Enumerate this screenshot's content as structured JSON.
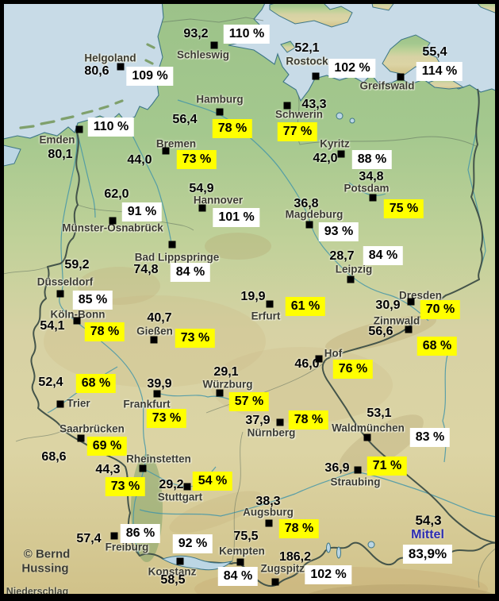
{
  "map": {
    "title": "Niederschlag",
    "credit_line1": "© Bernd",
    "credit_line2": "Hussing",
    "colors": {
      "badge_yellow": "#ffff00",
      "badge_white": "#ffffff",
      "sea": "#c8dbe7",
      "mittel_blue": "#2c2cb0",
      "marker_black": "#000000"
    }
  },
  "mittel": {
    "value": "54,3",
    "label": "Mittel",
    "percent": "83,9%"
  },
  "stations": [
    {
      "name": "Schleswig",
      "value": "93,2",
      "percent": "110 %",
      "box": "white",
      "pos": {
        "name": [
          256,
          69
        ],
        "value": [
          247,
          43
        ],
        "marker": [
          270,
          57
        ],
        "percent": [
          311,
          43
        ]
      }
    },
    {
      "name": "Helgoland",
      "value": "80,6",
      "percent": "109 %",
      "box": "white",
      "pos": {
        "name": [
          139,
          73
        ],
        "value": [
          122,
          90
        ],
        "marker": [
          152,
          84
        ],
        "percent": [
          189,
          96
        ]
      }
    },
    {
      "name": "Rostock",
      "value": "52,1",
      "percent": "102 %",
      "box": "white",
      "pos": {
        "name": [
          387,
          77
        ],
        "value": [
          387,
          61
        ],
        "marker": [
          398,
          96
        ],
        "percent": [
          444,
          86
        ]
      }
    },
    {
      "name": "Greifswald",
      "value": "55,4",
      "percent": "114 %",
      "box": "white",
      "pos": {
        "name": [
          488,
          108
        ],
        "value": [
          548,
          66
        ],
        "marker": [
          505,
          97
        ],
        "percent": [
          554,
          90
        ]
      }
    },
    {
      "name": "Emden",
      "value": "80,1",
      "percent": "110 %",
      "box": "white",
      "pos": {
        "name": [
          72,
          176
        ],
        "value": [
          76,
          195
        ],
        "marker": [
          100,
          163
        ],
        "percent": [
          140,
          160
        ]
      }
    },
    {
      "name": "Hamburg",
      "value": "56,4",
      "percent": "78 %",
      "box": "yellow",
      "pos": {
        "name": [
          277,
          125
        ],
        "value": [
          233,
          151
        ],
        "marker": [
          277,
          141
        ],
        "percent": [
          293,
          162
        ]
      }
    },
    {
      "name": "Schwerin",
      "value": "43,3",
      "percent": "77 %",
      "box": "yellow",
      "pos": {
        "name": [
          377,
          144
        ],
        "value": [
          396,
          132
        ],
        "marker": [
          362,
          133
        ],
        "percent": [
          375,
          166
        ]
      }
    },
    {
      "name": "Bremen",
      "value": "44,0",
      "percent": "73 %",
      "box": "yellow",
      "pos": {
        "name": [
          222,
          181
        ],
        "value": [
          176,
          202
        ],
        "marker": [
          209,
          190
        ],
        "percent": [
          248,
          201
        ]
      }
    },
    {
      "name": "Kyritz",
      "value": "42,0",
      "percent": "88 %",
      "box": "white",
      "pos": {
        "name": [
          422,
          181
        ],
        "value": [
          410,
          200
        ],
        "marker": [
          430,
          194
        ],
        "percent": [
          469,
          201
        ]
      }
    },
    {
      "name": "Hannover",
      "value": "54,9",
      "percent": "101 %",
      "box": "white",
      "pos": {
        "name": [
          275,
          252
        ],
        "value": [
          254,
          238
        ],
        "marker": [
          255,
          262
        ],
        "percent": [
          298,
          274
        ]
      }
    },
    {
      "name": "Münster-Osnabrück",
      "value": "62,0",
      "percent": "91 %",
      "box": "white",
      "pos": {
        "name": [
          142,
          287
        ],
        "value": [
          147,
          245
        ],
        "marker": [
          142,
          278
        ],
        "percent": [
          179,
          267
        ]
      }
    },
    {
      "name": "Magdeburg",
      "value": "36,8",
      "percent": "93 %",
      "box": "white",
      "pos": {
        "name": [
          396,
          270
        ],
        "value": [
          386,
          257
        ],
        "marker": [
          390,
          283
        ],
        "percent": [
          427,
          292
        ]
      }
    },
    {
      "name": "Potsdam",
      "value": "34,8",
      "percent": "75 %",
      "box": "yellow",
      "pos": {
        "name": [
          462,
          237
        ],
        "value": [
          468,
          223
        ],
        "marker": [
          470,
          249
        ],
        "percent": [
          509,
          263
        ]
      }
    },
    {
      "name": "Bad Lippspringe",
      "value": "74,8",
      "percent": "84 %",
      "box": "white",
      "pos": {
        "name": [
          223,
          324
        ],
        "value": [
          184,
          340
        ],
        "marker": [
          217,
          308
        ],
        "percent": [
          240,
          343
        ]
      }
    },
    {
      "name": "Leipzig",
      "value": "28,7",
      "percent": "84 %",
      "box": "white",
      "pos": {
        "name": [
          446,
          339
        ],
        "value": [
          431,
          323
        ],
        "marker": [
          442,
          352
        ],
        "percent": [
          483,
          322
        ]
      }
    },
    {
      "name": "Düsseldorf",
      "value": "59,2",
      "percent": "85 %",
      "box": "white",
      "pos": {
        "name": [
          82,
          355
        ],
        "value": [
          97,
          334
        ],
        "marker": [
          76,
          370
        ],
        "percent": [
          117,
          378
        ]
      }
    },
    {
      "name": "Köln-Bonn",
      "value": "54,1",
      "percent": "78 %",
      "box": "yellow",
      "pos": {
        "name": [
          98,
          396
        ],
        "value": [
          66,
          411
        ],
        "marker": [
          97,
          404
        ],
        "percent": [
          132,
          418
        ]
      }
    },
    {
      "name": "Gießen",
      "value": "40,7",
      "percent": "73 %",
      "box": "yellow",
      "pos": {
        "name": [
          195,
          417
        ],
        "value": [
          201,
          401
        ],
        "marker": [
          194,
          428
        ],
        "percent": [
          246,
          426
        ]
      }
    },
    {
      "name": "Erfurt",
      "value": "19,9",
      "percent": "61 %",
      "box": "yellow",
      "pos": {
        "name": [
          335,
          398
        ],
        "value": [
          319,
          374
        ],
        "marker": [
          340,
          383
        ],
        "percent": [
          385,
          386
        ]
      }
    },
    {
      "name": "Dresden",
      "value": "30,9",
      "percent": "70 %",
      "box": "yellow",
      "pos": {
        "name": [
          530,
          372
        ],
        "value": [
          489,
          385
        ],
        "marker": [
          518,
          380
        ],
        "percent": [
          555,
          390
        ]
      }
    },
    {
      "name": "Zinnwald",
      "value": "56,6",
      "percent": "68 %",
      "box": "yellow",
      "pos": {
        "name": [
          500,
          404
        ],
        "value": [
          480,
          418
        ],
        "marker": [
          515,
          415
        ],
        "percent": [
          551,
          436
        ]
      }
    },
    {
      "name": "Hof",
      "value": "46,0",
      "percent": "76 %",
      "box": "yellow",
      "pos": {
        "name": [
          420,
          445
        ],
        "value": [
          387,
          459
        ],
        "marker": [
          402,
          452
        ],
        "percent": [
          445,
          465
        ]
      }
    },
    {
      "name": "Würzburg",
      "value": "29,1",
      "percent": "57 %",
      "box": "yellow",
      "pos": {
        "name": [
          287,
          484
        ],
        "value": [
          285,
          469
        ],
        "marker": [
          277,
          495
        ],
        "percent": [
          314,
          506
        ]
      }
    },
    {
      "name": "Trier",
      "value": "52,4",
      "percent": "68 %",
      "box": "yellow",
      "pos": {
        "name": [
          99,
          508
        ],
        "value": [
          64,
          482
        ],
        "marker": [
          76,
          509
        ],
        "percent": [
          121,
          483
        ]
      }
    },
    {
      "name": "Frankfurt",
      "value": "39,9",
      "percent": "73 %",
      "box": "yellow",
      "pos": {
        "name": [
          185,
          509
        ],
        "value": [
          201,
          484
        ],
        "marker": [
          198,
          496
        ],
        "percent": [
          210,
          527
        ]
      }
    },
    {
      "name": "Nürnberg",
      "value": "37,9",
      "percent": "78 %",
      "box": "yellow",
      "pos": {
        "name": [
          342,
          545
        ],
        "value": [
          325,
          530
        ],
        "marker": [
          353,
          532
        ],
        "percent": [
          389,
          529
        ]
      }
    },
    {
      "name": "Waldmünchen",
      "value": "53,1",
      "percent": "83 %",
      "box": "white",
      "pos": {
        "name": [
          464,
          539
        ],
        "value": [
          478,
          521
        ],
        "marker": [
          463,
          551
        ],
        "percent": [
          542,
          551
        ]
      }
    },
    {
      "name": "Saarbrücken",
      "value": "68,6",
      "percent": "69 %",
      "box": "yellow",
      "pos": {
        "name": [
          116,
          540
        ],
        "value": [
          68,
          576
        ],
        "marker": [
          102,
          552
        ],
        "percent": [
          135,
          562
        ]
      }
    },
    {
      "name": "Rheinstetten",
      "value": "44,3",
      "percent": "73 %",
      "box": "yellow",
      "pos": {
        "name": [
          200,
          578
        ],
        "value": [
          136,
          592
        ],
        "marker": [
          180,
          590
        ],
        "percent": [
          158,
          613
        ]
      }
    },
    {
      "name": "Stuttgart",
      "value": "29,2",
      "percent": "54 %",
      "box": "yellow",
      "pos": {
        "name": [
          227,
          626
        ],
        "value": [
          216,
          611
        ],
        "marker": [
          236,
          613
        ],
        "percent": [
          268,
          606
        ]
      }
    },
    {
      "name": "Straubing",
      "value": "36,9",
      "percent": "71 %",
      "box": "yellow",
      "pos": {
        "name": [
          448,
          607
        ],
        "value": [
          425,
          590
        ],
        "marker": [
          451,
          592
        ],
        "percent": [
          488,
          587
        ]
      }
    },
    {
      "name": "Augsburg",
      "value": "38,3",
      "percent": "78 %",
      "box": "yellow",
      "pos": {
        "name": [
          338,
          645
        ],
        "value": [
          338,
          632
        ],
        "marker": [
          339,
          659
        ],
        "percent": [
          377,
          666
        ]
      }
    },
    {
      "name": "Freiburg",
      "value": "57,4",
      "percent": "86 %",
      "box": "white",
      "pos": {
        "name": [
          160,
          689
        ],
        "value": [
          112,
          679
        ],
        "marker": [
          144,
          675
        ],
        "percent": [
          177,
          672
        ]
      }
    },
    {
      "name": "Konstanz",
      "value": "58,5",
      "percent": "92 %",
      "box": "white",
      "pos": {
        "name": [
          217,
          720
        ],
        "value": [
          218,
          731
        ],
        "marker": [
          227,
          707
        ],
        "percent": [
          243,
          685
        ]
      }
    },
    {
      "name": "Kempten",
      "value": "75,5",
      "percent": "84 %",
      "box": "white",
      "pos": {
        "name": [
          305,
          694
        ],
        "value": [
          310,
          676
        ],
        "marker": [
          303,
          708
        ],
        "percent": [
          300,
          726
        ]
      }
    },
    {
      "name": "Zugspitze",
      "value": "186,2",
      "percent": "102 %",
      "box": "white",
      "pos": {
        "name": [
          360,
          716
        ],
        "value": [
          372,
          702
        ],
        "marker": [
          347,
          733
        ],
        "percent": [
          414,
          724
        ]
      }
    }
  ]
}
